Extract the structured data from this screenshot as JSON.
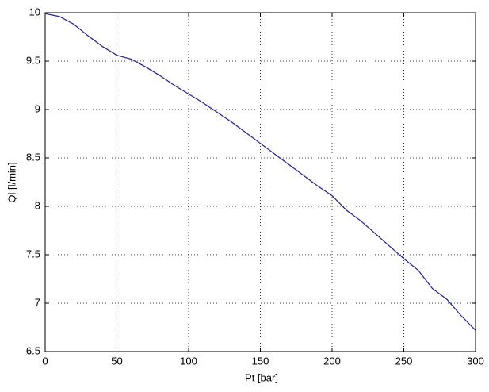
{
  "chart_data": {
    "type": "line",
    "x_label": "Pt [bar]",
    "y_label": "Ql [l/min]",
    "x": [
      0,
      10,
      20,
      30,
      40,
      50,
      60,
      70,
      80,
      90,
      100,
      110,
      120,
      130,
      140,
      150,
      160,
      170,
      180,
      190,
      200,
      210,
      220,
      230,
      240,
      250,
      260,
      270,
      280,
      290,
      300
    ],
    "series": [
      {
        "color": "#1f1f8f",
        "values": [
          9.99,
          9.96,
          9.88,
          9.76,
          9.65,
          9.56,
          9.52,
          9.44,
          9.35,
          9.25,
          9.16,
          9.07,
          8.97,
          8.87,
          8.76,
          8.65,
          8.54,
          8.43,
          8.32,
          8.21,
          8.11,
          7.96,
          7.85,
          7.72,
          7.59,
          7.46,
          7.34,
          7.15,
          7.04,
          6.87,
          6.72
        ]
      }
    ],
    "xlim": [
      0,
      300
    ],
    "ylim": [
      6.5,
      10
    ],
    "xticks": [
      0,
      50,
      100,
      150,
      200,
      250,
      300
    ],
    "yticks": [
      6.5,
      7,
      7.5,
      8,
      8.5,
      9,
      9.5,
      10
    ],
    "grid": true
  }
}
